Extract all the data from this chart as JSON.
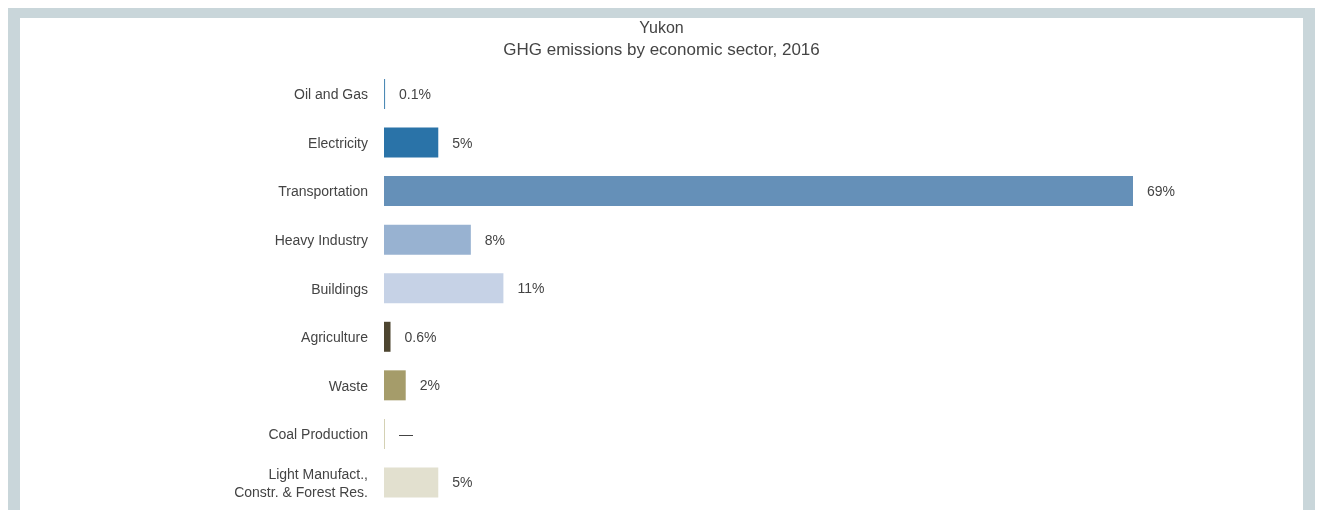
{
  "chart_data": {
    "type": "bar",
    "orientation": "horizontal",
    "title": "Yukon",
    "subtitle": "GHG emissions by economic sector, 2016",
    "categories": [
      "Oil and Gas",
      "Electricity",
      "Transportation",
      "Heavy Industry",
      "Buildings",
      "Agriculture",
      "Waste",
      "Coal Production",
      "Light Manufact.,\nConstr. & Forest Res."
    ],
    "values": [
      0.1,
      5,
      69,
      8,
      11,
      0.6,
      2,
      0,
      5
    ],
    "colors": [
      "#4d8ab5",
      "#2a73a8",
      "#6590b8",
      "#98b2d1",
      "#c6d2e6",
      "#4d4530",
      "#a59c6a",
      "#d4d1b4",
      "#e2e0cf"
    ],
    "value_labels": [
      "0.1%",
      "5%",
      "69%",
      "8%",
      "11%",
      "0.6%",
      "2%",
      "—",
      "5%"
    ],
    "grid": false,
    "legend": false
  }
}
